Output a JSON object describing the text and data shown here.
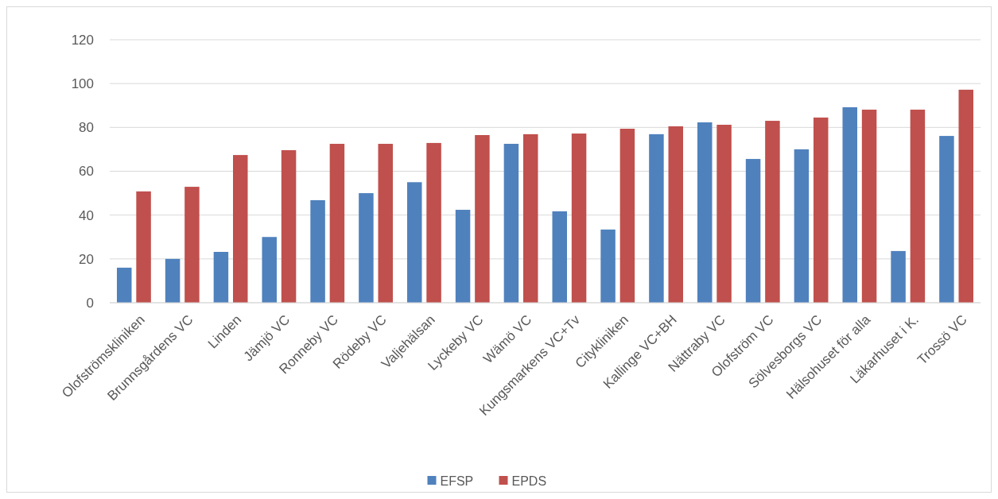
{
  "chart_data": {
    "type": "bar",
    "categories": [
      "Olofströmskliniken",
      "Brunnsgårdens VC",
      "Linden",
      "Jämjö VC",
      "Ronneby VC",
      "Rödeby VC",
      "Valjehälsan",
      "Lyckeby VC",
      "Wämö VC",
      "Kungsmarkens VC+Tv",
      "Citykliniken",
      "Kallinge VC+BH",
      "Nättraby VC",
      "Olofström VC",
      "Sölvesborgs VC",
      "Hälsohuset för alla",
      "Läkarhuset i K.",
      "Trossö VC"
    ],
    "series": [
      {
        "name": "EFSP",
        "color": "#4f81bd",
        "values": [
          16,
          20,
          23.2,
          30,
          46.8,
          50,
          55,
          42.4,
          72.5,
          41.7,
          33.4,
          76.9,
          82.3,
          65.6,
          70,
          89.2,
          23.6,
          76.1
        ]
      },
      {
        "name": "EPDS",
        "color": "#c0504d",
        "values": [
          50.8,
          52.9,
          67.4,
          69.6,
          72.5,
          72.5,
          72.9,
          76.5,
          76.9,
          77.2,
          79.4,
          80.5,
          81.2,
          83,
          84.5,
          88.1,
          88.1,
          97.2
        ]
      }
    ],
    "ylim": [
      0,
      120
    ],
    "yticks": [
      0,
      20,
      40,
      60,
      80,
      100,
      120
    ],
    "grid": "y",
    "legend": "bottom"
  }
}
